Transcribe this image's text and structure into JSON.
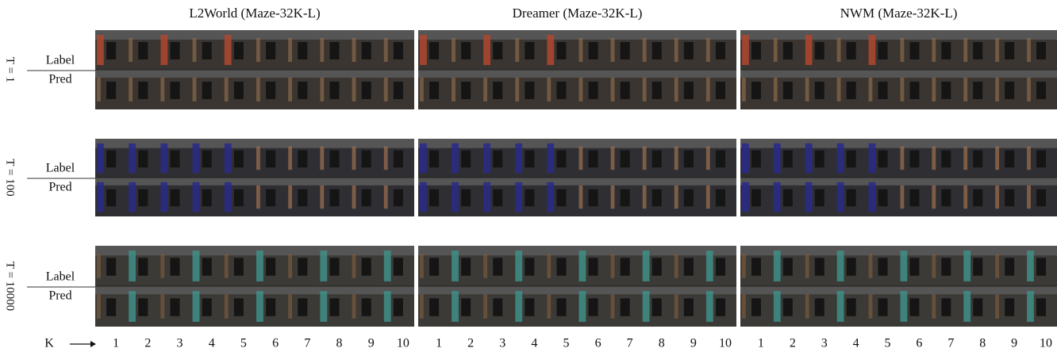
{
  "columns": [
    "L2World (Maze-32K-L)",
    "Dreamer (Maze-32K-L)",
    "NWM (Maze-32K-L)"
  ],
  "rows": [
    {
      "t": "T = 1",
      "top": "Label",
      "bottom": "Pred"
    },
    {
      "t": "T = 100",
      "top": "Label",
      "bottom": "Pred"
    },
    {
      "t": "T = 10000",
      "top": "Label",
      "bottom": "Pred"
    }
  ],
  "k_axis": {
    "label": "K",
    "steps": [
      1,
      2,
      3,
      4,
      5,
      6,
      7,
      8,
      9,
      10
    ]
  }
}
